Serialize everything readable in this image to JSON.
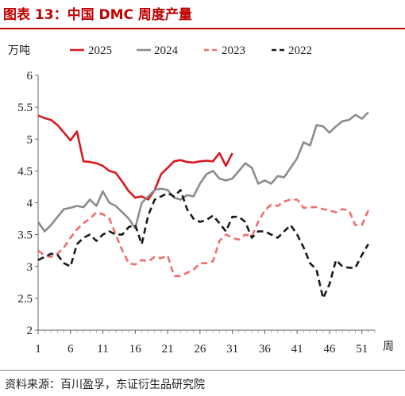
{
  "header": {
    "title": "图表 13：中国 DMC 周度产量"
  },
  "footer": {
    "source": "资料来源：百川盈孚，东证衍生品研究院"
  },
  "chart_data": {
    "type": "line",
    "ylabel": "万吨",
    "xlabel": "周",
    "ylim": [
      2,
      6
    ],
    "yticks": [
      2,
      2.5,
      3,
      3.5,
      4,
      4.5,
      5,
      5.5,
      6
    ],
    "xlim": [
      1,
      53
    ],
    "xticks": [
      1,
      6,
      11,
      16,
      21,
      26,
      31,
      36,
      41,
      46,
      51
    ],
    "legend": "top",
    "grid": false,
    "series": [
      {
        "name": "2025",
        "color": "#d71920",
        "dash": "solid",
        "x": [
          1,
          2,
          3,
          4,
          5,
          6,
          7,
          8,
          9,
          10,
          11,
          12,
          13,
          14,
          15,
          16,
          17,
          18,
          19,
          20,
          21,
          22,
          23,
          24,
          25,
          26,
          27,
          28,
          29,
          30,
          31
        ],
        "y": [
          5.37,
          5.33,
          5.3,
          5.22,
          5.1,
          4.98,
          5.12,
          4.65,
          4.64,
          4.62,
          4.58,
          4.5,
          4.47,
          4.33,
          4.18,
          4.08,
          4.1,
          4.05,
          4.2,
          4.45,
          4.55,
          4.65,
          4.67,
          4.64,
          4.63,
          4.65,
          4.66,
          4.65,
          4.78,
          4.58,
          4.78
        ]
      },
      {
        "name": "2024",
        "color": "#8c8c8c",
        "dash": "solid",
        "x": [
          1,
          2,
          3,
          4,
          5,
          6,
          7,
          8,
          9,
          10,
          11,
          12,
          13,
          14,
          15,
          16,
          17,
          18,
          19,
          20,
          21,
          22,
          23,
          24,
          25,
          26,
          27,
          28,
          29,
          30,
          31,
          32,
          33,
          34,
          35,
          36,
          37,
          38,
          39,
          40,
          41,
          42,
          43,
          44,
          45,
          46,
          47,
          48,
          49,
          50,
          51,
          52
        ],
        "y": [
          3.7,
          3.55,
          3.65,
          3.78,
          3.9,
          3.92,
          3.95,
          3.93,
          4.05,
          3.95,
          4.18,
          4.0,
          3.95,
          3.85,
          3.75,
          3.6,
          4.0,
          4.1,
          4.2,
          4.22,
          4.2,
          4.08,
          4.05,
          4.12,
          4.1,
          4.3,
          4.45,
          4.5,
          4.38,
          4.35,
          4.38,
          4.5,
          4.62,
          4.55,
          4.3,
          4.35,
          4.3,
          4.42,
          4.4,
          4.55,
          4.7,
          4.95,
          4.9,
          5.22,
          5.2,
          5.1,
          5.2,
          5.28,
          5.3,
          5.38,
          5.32,
          5.42
        ]
      },
      {
        "name": "2023",
        "color": "#f26d6d",
        "dash": "dashed",
        "x": [
          1,
          2,
          3,
          4,
          5,
          6,
          7,
          8,
          9,
          10,
          11,
          12,
          13,
          14,
          15,
          16,
          17,
          18,
          19,
          20,
          21,
          22,
          23,
          24,
          25,
          26,
          27,
          28,
          29,
          30,
          31,
          32,
          33,
          34,
          35,
          36,
          37,
          38,
          39,
          40,
          41,
          42,
          43,
          44,
          45,
          46,
          47,
          48,
          49,
          50,
          51,
          52
        ],
        "y": [
          3.25,
          3.17,
          3.15,
          3.2,
          3.3,
          3.45,
          3.58,
          3.68,
          3.75,
          3.85,
          3.82,
          3.75,
          3.5,
          3.25,
          3.05,
          3.03,
          3.1,
          3.08,
          3.15,
          3.13,
          3.17,
          2.85,
          2.85,
          2.9,
          2.95,
          3.05,
          3.05,
          3.08,
          3.4,
          3.5,
          3.45,
          3.42,
          3.5,
          3.47,
          3.7,
          3.88,
          3.97,
          3.95,
          4.02,
          4.05,
          4.05,
          3.92,
          3.93,
          3.93,
          3.9,
          3.88,
          3.85,
          3.9,
          3.88,
          3.65,
          3.65,
          3.88
        ]
      },
      {
        "name": "2022",
        "color": "#1a1a1a",
        "dash": "dashed",
        "x": [
          1,
          2,
          3,
          4,
          5,
          6,
          7,
          8,
          9,
          10,
          11,
          12,
          13,
          14,
          15,
          16,
          17,
          18,
          19,
          20,
          21,
          22,
          23,
          24,
          25,
          26,
          27,
          28,
          29,
          30,
          31,
          32,
          33,
          34,
          35,
          36,
          37,
          38,
          39,
          40,
          41,
          42,
          43,
          44,
          45,
          46,
          47,
          48,
          49,
          50,
          51,
          52
        ],
        "y": [
          3.1,
          3.15,
          3.2,
          3.18,
          3.05,
          3.0,
          3.35,
          3.45,
          3.5,
          3.4,
          3.5,
          3.55,
          3.5,
          3.5,
          3.62,
          3.65,
          3.35,
          3.8,
          4.05,
          4.1,
          4.15,
          4.1,
          4.2,
          3.9,
          3.75,
          3.7,
          3.73,
          3.8,
          3.68,
          3.55,
          3.78,
          3.78,
          3.7,
          3.45,
          3.55,
          3.55,
          3.5,
          3.45,
          3.55,
          3.65,
          3.5,
          3.3,
          3.05,
          2.95,
          2.5,
          2.72,
          3.1,
          3.0,
          2.98,
          2.98,
          3.18,
          3.35
        ]
      }
    ]
  }
}
